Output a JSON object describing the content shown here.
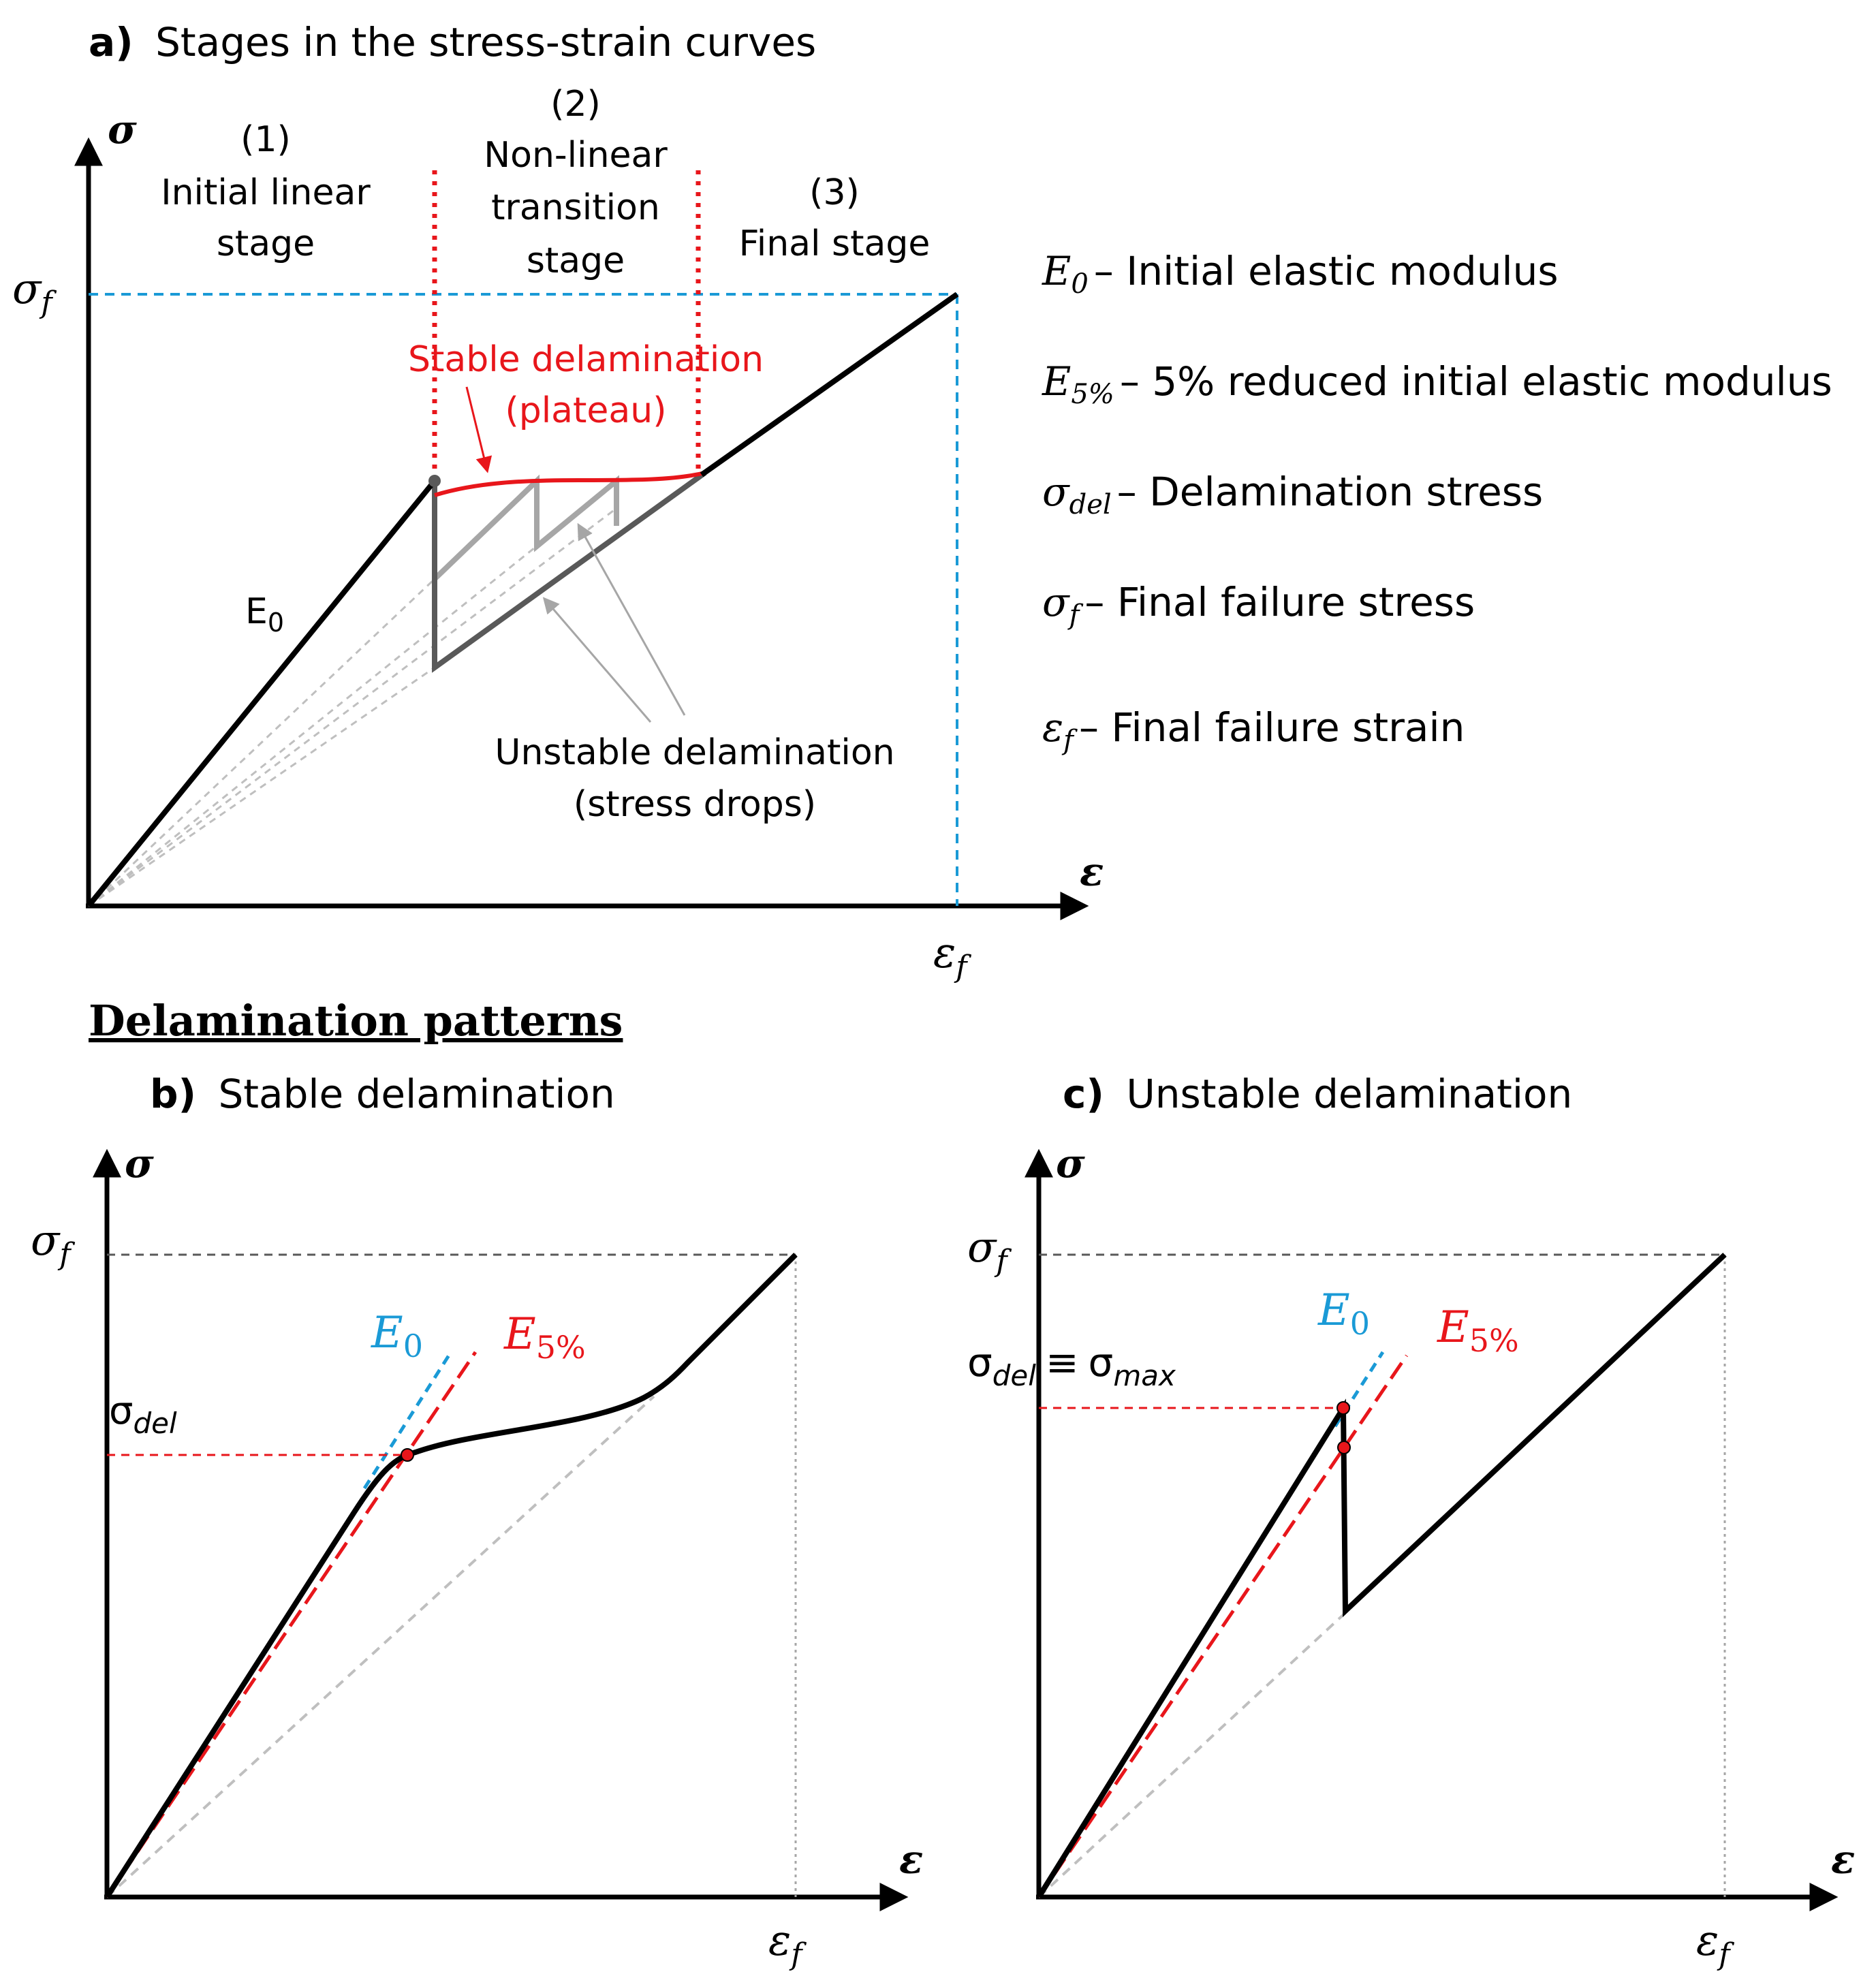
{
  "panel_a": {
    "title_letter": "a)",
    "title_text": "Stages in the stress-strain curves",
    "y_axis_label": "σ",
    "x_axis_label": "ε",
    "sigma_f_label": "σ",
    "sigma_f_sub": "f",
    "eps_f_label": "ε",
    "eps_f_sub": "f",
    "stage1_num": "(1)",
    "stage1_line1": "Initial linear",
    "stage1_line2": "stage",
    "stage2_num": "(2)",
    "stage2_line1": "Non-linear",
    "stage2_line2": "transition",
    "stage2_line3": "stage",
    "stage3_num": "(3)",
    "stage3_line1": "Final stage",
    "stable_line1": "Stable delamination",
    "stable_line2": "(plateau)",
    "e0_label": "E",
    "e0_sub": "0",
    "unstable_line1": "Unstable delamination",
    "unstable_line2": "(stress drops)"
  },
  "legend": {
    "items": [
      {
        "symbol": "E",
        "sub": "0",
        "text": "– Initial elastic modulus"
      },
      {
        "symbol": "E",
        "sub": "5%",
        "text": "– 5% reduced initial elastic modulus"
      },
      {
        "symbol": "σ",
        "sub": "del",
        "text": "– Delamination stress"
      },
      {
        "symbol": "σ",
        "sub": "f",
        "text": "– Final failure stress"
      },
      {
        "symbol": "ε",
        "sub": "f",
        "text": "– Final failure strain"
      }
    ]
  },
  "patterns_heading": "Delamination patterns",
  "panel_b": {
    "title_letter": "b)",
    "title_text": "Stable delamination",
    "y_axis_label": "σ",
    "x_axis_label": "ε",
    "sigma_f_label": "σ",
    "sigma_f_sub": "f",
    "eps_f_label": "ε",
    "eps_f_sub": "f",
    "sigma_del_label": "σ",
    "sigma_del_sub": "del",
    "e0_label": "E",
    "e0_sub": "0",
    "e5_label": "E",
    "e5_sub": "5%"
  },
  "panel_c": {
    "title_letter": "c)",
    "title_text": "Unstable delamination",
    "y_axis_label": "σ",
    "x_axis_label": "ε",
    "sigma_f_label": "σ",
    "sigma_f_sub": "f",
    "eps_f_label": "ε",
    "eps_f_sub": "f",
    "sigma_del_label": "σ",
    "sigma_del_sub": "del",
    "equiv": "≡",
    "sigma_max_label": "σ",
    "sigma_max_sub": "max",
    "e0_label": "E",
    "e0_sub": "0",
    "e5_label": "E",
    "e5_sub": "5%"
  },
  "colors": {
    "curve": "#000000",
    "blue": "#1a9ad6",
    "red": "#e8161b",
    "grey": "#a6a6a6",
    "dark_grey": "#595959"
  }
}
